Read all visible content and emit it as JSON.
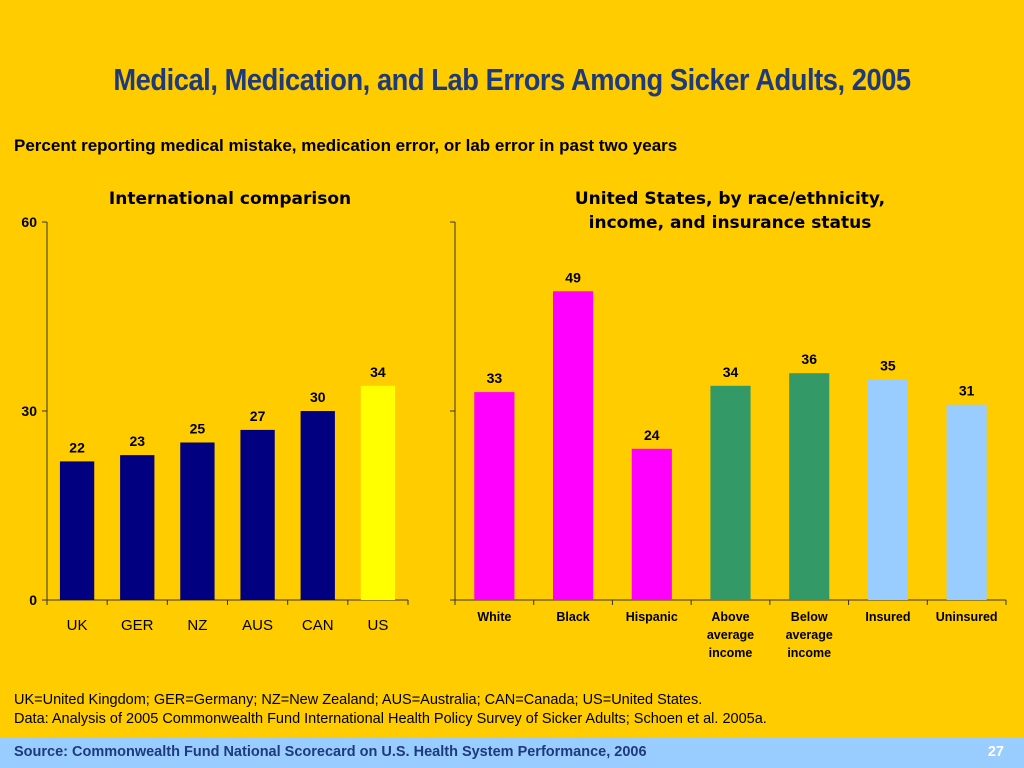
{
  "slide": {
    "title": "Medical, Medication, and Lab Errors Among Sicker Adults, 2005",
    "subtitle": "Percent reporting medical mistake, medication error, or lab error in past two years",
    "footnote_1": "UK=United Kingdom; GER=Germany; NZ=New Zealand; AUS=Australia; CAN=Canada; US=United States.",
    "footnote_2": "Data: Analysis of 2005 Commonwealth Fund International Health Policy Survey of Sicker Adults; Schoen et al. 2005a.",
    "source": "Source: Commonwealth Fund National Scorecard on U.S. Health System Performance, 2006",
    "page_number": "27"
  },
  "chart_data": [
    {
      "type": "bar",
      "title": "International comparison",
      "categories": [
        "UK",
        "GER",
        "NZ",
        "AUS",
        "CAN",
        "US"
      ],
      "values": [
        22,
        23,
        25,
        27,
        30,
        34
      ],
      "colors": [
        "#000080",
        "#000080",
        "#000080",
        "#000080",
        "#000080",
        "#FFFF00"
      ],
      "ylim": [
        0,
        60
      ],
      "yticks": [
        "0",
        "30",
        "60"
      ],
      "xlabel": "",
      "ylabel": ""
    },
    {
      "type": "bar",
      "title": "United States, by race/ethnicity, income, and insurance status",
      "title_lines": [
        "United States, by race/ethnicity,",
        "income, and insurance status"
      ],
      "categories": [
        "White",
        "Black",
        "Hispanic",
        "Above average income",
        "Below average income",
        "Insured",
        "Uninsured"
      ],
      "category_lines": [
        [
          "White"
        ],
        [
          "Black"
        ],
        [
          "Hispanic"
        ],
        [
          "Above",
          "average",
          "income"
        ],
        [
          "Below",
          "average",
          "income"
        ],
        [
          "Insured"
        ],
        [
          "Uninsured"
        ]
      ],
      "values": [
        33,
        49,
        24,
        34,
        36,
        35,
        31
      ],
      "colors": [
        "#FF00FF",
        "#FF00FF",
        "#FF00FF",
        "#339966",
        "#339966",
        "#99CCFF",
        "#99CCFF"
      ],
      "ylim": [
        0,
        60
      ],
      "xlabel": "",
      "ylabel": ""
    }
  ]
}
